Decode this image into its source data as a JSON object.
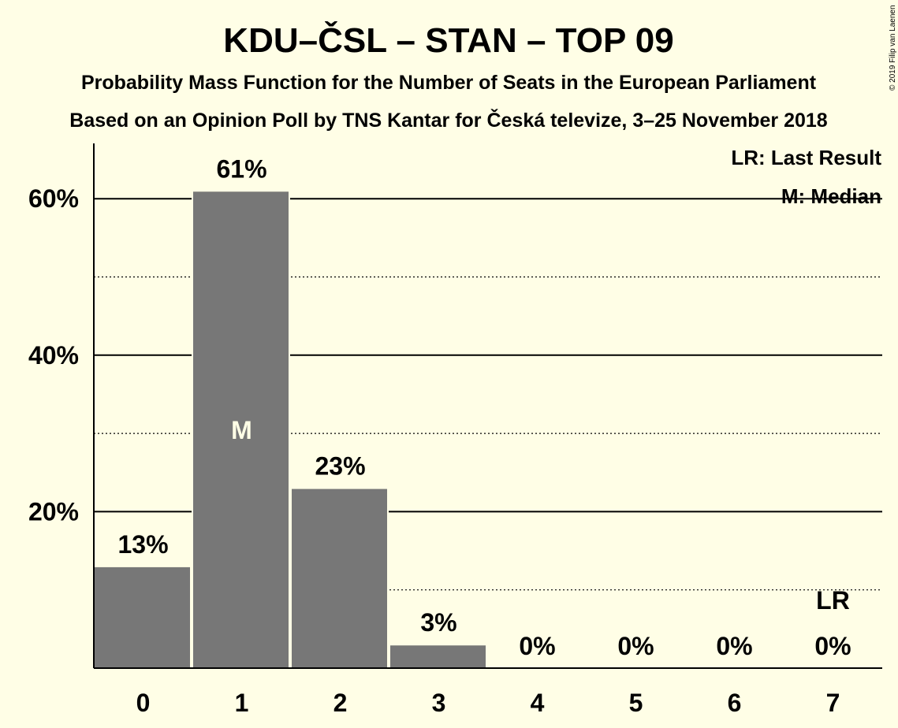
{
  "chart_data": {
    "type": "bar",
    "title": "KDU–ČSL – STAN – TOP 09",
    "subtitle": "Probability Mass Function for the Number of Seats in the European Parliament",
    "subtitle2": "Based on an Opinion Poll by TNS Kantar for Česká televize, 3–25 November 2018",
    "categories": [
      "0",
      "1",
      "2",
      "3",
      "4",
      "5",
      "6",
      "7"
    ],
    "values": [
      13,
      61,
      23,
      3,
      0,
      0,
      0,
      0
    ],
    "data_labels": [
      "13%",
      "61%",
      "23%",
      "3%",
      "0%",
      "0%",
      "0%",
      "0%"
    ],
    "ylim": [
      0,
      67
    ],
    "y_ticks": [
      20,
      40,
      60
    ],
    "y_tick_labels": [
      "20%",
      "40%",
      "60%"
    ],
    "minor_gridlines": [
      10,
      30,
      50
    ],
    "median_index": 1,
    "median_marker": "M",
    "last_result_index": 7,
    "last_result_marker": "LR",
    "legend": {
      "placement": "top-right",
      "last_result": "LR: Last Result",
      "median": "M: Median"
    },
    "colors": {
      "bar": "#777777",
      "background": "#FFFEE6",
      "grid": "#000000"
    },
    "copyright": "© 2019 Filip van Laenen"
  }
}
